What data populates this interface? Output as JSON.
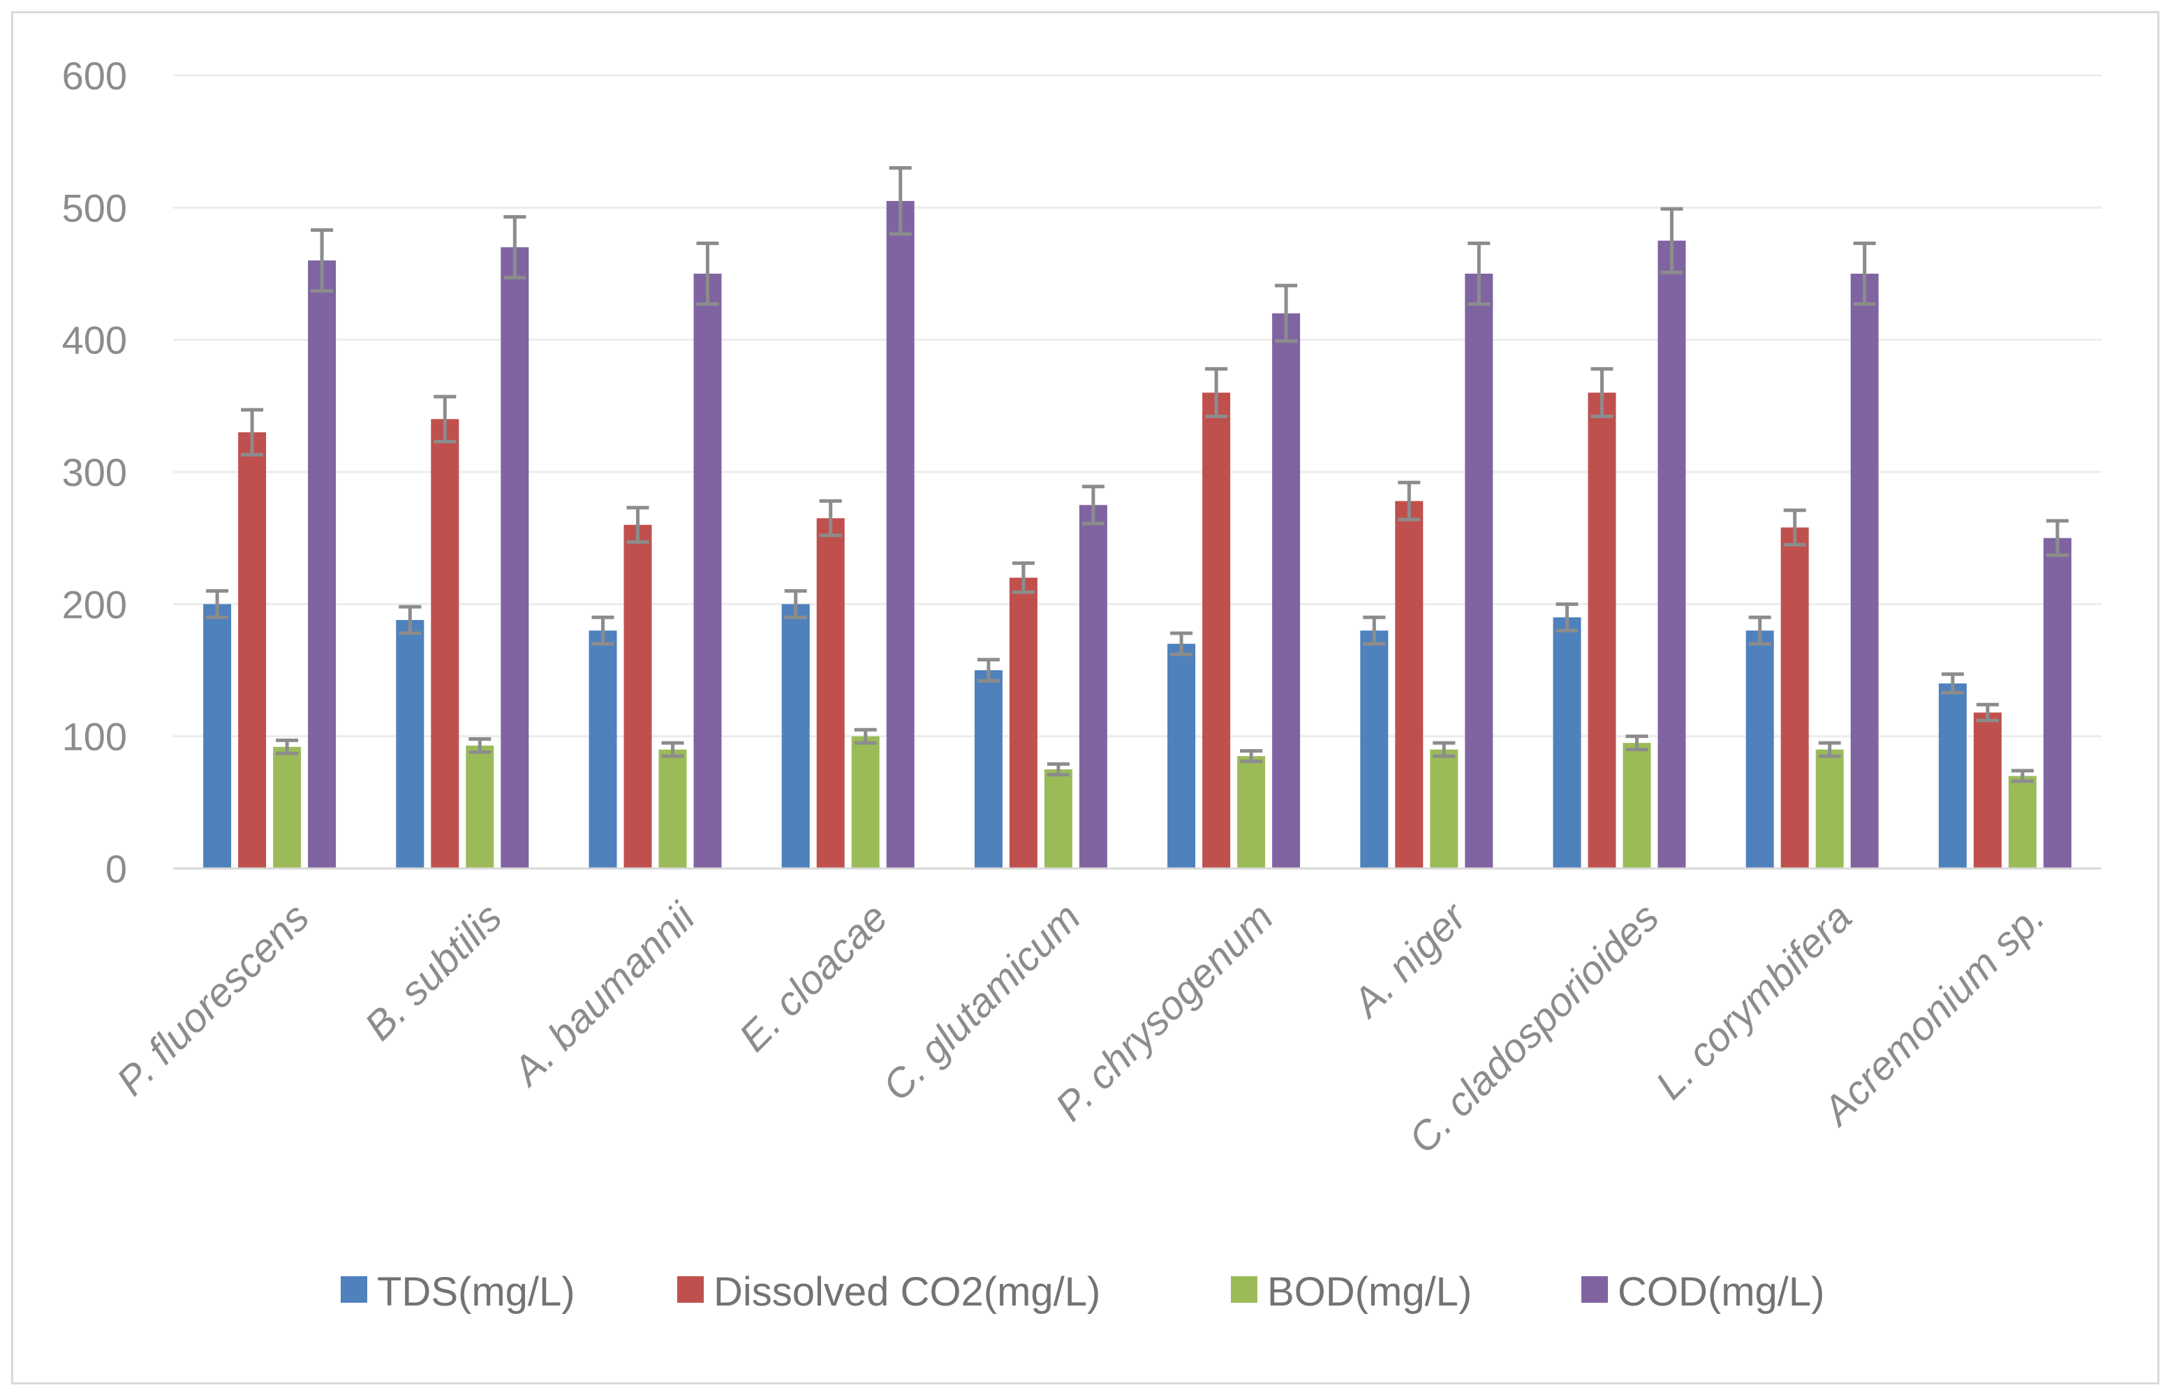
{
  "chart_data": {
    "type": "bar",
    "title": "",
    "xlabel": "",
    "ylabel": "",
    "ylim": [
      0,
      600
    ],
    "yticks": [
      0,
      100,
      200,
      300,
      400,
      500,
      600
    ],
    "grid": true,
    "legend_position": "bottom",
    "categories": [
      "P. fluorescens",
      "B. subtilis",
      "A. baumannii",
      "E. cloacae",
      "C. glutamicum",
      "P. chrysogenum",
      "A. niger",
      "C. cladosporioides",
      "L. corymbifera",
      "Acremonium sp."
    ],
    "series": [
      {
        "name": "TDS(mg/L)",
        "color": "#4f81bd",
        "values": [
          200,
          188,
          180,
          200,
          150,
          170,
          180,
          190,
          180,
          140
        ],
        "errors": [
          10,
          10,
          10,
          10,
          8,
          8,
          10,
          10,
          10,
          7
        ]
      },
      {
        "name": "Dissolved CO2(mg/L)",
        "color": "#c0504d",
        "values": [
          330,
          340,
          260,
          265,
          220,
          360,
          278,
          360,
          258,
          118
        ],
        "errors": [
          17,
          17,
          13,
          13,
          11,
          18,
          14,
          18,
          13,
          6
        ]
      },
      {
        "name": "BOD(mg/L)",
        "color": "#9bbb59",
        "values": [
          92,
          93,
          90,
          100,
          75,
          85,
          90,
          95,
          90,
          70
        ],
        "errors": [
          5,
          5,
          5,
          5,
          4,
          4,
          5,
          5,
          5,
          4
        ]
      },
      {
        "name": "COD(mg/L)",
        "color": "#8064a2",
        "values": [
          460,
          470,
          450,
          505,
          275,
          420,
          450,
          475,
          450,
          250
        ],
        "errors": [
          23,
          23,
          23,
          25,
          14,
          21,
          23,
          24,
          23,
          13
        ]
      }
    ],
    "error_bar_color": "#8c8c8c"
  }
}
